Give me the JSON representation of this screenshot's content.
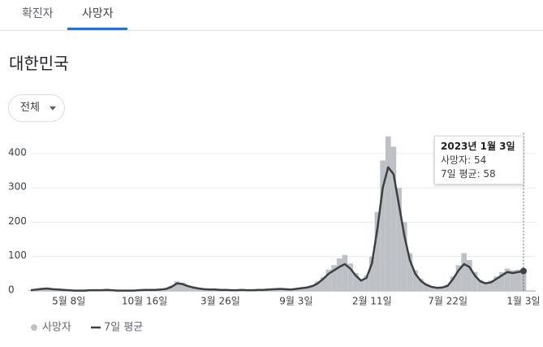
{
  "tabs": [
    "확진자",
    "사망자"
  ],
  "region": "대한민국",
  "filter": "전체",
  "chart_data": {
    "type": "combo",
    "categories": [
      null,
      null,
      null,
      null,
      null,
      null,
      null,
      "5월 8일",
      null,
      null,
      null,
      null,
      null,
      null,
      null,
      null,
      null,
      null,
      null,
      null,
      null,
      "10월 16일",
      null,
      null,
      null,
      null,
      null,
      null,
      null,
      null,
      null,
      null,
      null,
      null,
      null,
      "3월 26일",
      null,
      null,
      null,
      null,
      null,
      null,
      null,
      null,
      null,
      null,
      null,
      null,
      null,
      "9월 3일",
      null,
      null,
      null,
      null,
      null,
      null,
      null,
      null,
      null,
      null,
      null,
      null,
      null,
      "2월 11일",
      null,
      null,
      null,
      null,
      null,
      null,
      null,
      null,
      null,
      null,
      null,
      null,
      null,
      "7월 22일",
      null,
      null,
      null,
      null,
      null,
      null,
      null,
      null,
      null,
      null,
      null,
      null,
      null,
      "1월 3일"
    ],
    "series": [
      {
        "name": "사망자",
        "type": "bar",
        "color": "#bdc1c6",
        "values": [
          2,
          5,
          7,
          8,
          5,
          4,
          3,
          2,
          1,
          2,
          1,
          3,
          2,
          3,
          4,
          2,
          1,
          2,
          1,
          1,
          3,
          4,
          3,
          4,
          5,
          7,
          15,
          28,
          24,
          16,
          11,
          8,
          6,
          5,
          4,
          3,
          4,
          2,
          3,
          4,
          2,
          3,
          4,
          3,
          5,
          6,
          8,
          6,
          5,
          7,
          10,
          12,
          17,
          28,
          40,
          62,
          75,
          95,
          105,
          80,
          52,
          34,
          45,
          100,
          230,
          380,
          450,
          420,
          300,
          200,
          110,
          60,
          35,
          22,
          14,
          11,
          12,
          18,
          42,
          75,
          110,
          90,
          55,
          32,
          26,
          30,
          42,
          55,
          65,
          60,
          62,
          54
        ]
      },
      {
        "name": "7일 평균",
        "type": "line",
        "color": "#3c4043",
        "values": [
          2,
          4,
          6,
          7,
          5,
          4,
          3,
          2,
          1,
          1,
          1,
          2,
          2,
          2,
          3,
          2,
          1,
          1,
          1,
          1,
          2,
          3,
          3,
          3,
          4,
          6,
          12,
          22,
          20,
          14,
          10,
          7,
          5,
          4,
          4,
          3,
          3,
          2,
          2,
          3,
          2,
          2,
          3,
          3,
          4,
          5,
          6,
          5,
          4,
          6,
          8,
          10,
          14,
          22,
          35,
          50,
          60,
          70,
          78,
          65,
          45,
          30,
          38,
          80,
          180,
          300,
          360,
          340,
          250,
          160,
          90,
          50,
          30,
          18,
          12,
          9,
          10,
          15,
          35,
          60,
          78,
          70,
          45,
          28,
          22,
          25,
          35,
          45,
          55,
          52,
          55,
          58
        ]
      }
    ],
    "ylim": [
      0,
      460
    ],
    "yticks": [
      0,
      100,
      200,
      300,
      400
    ],
    "grid": true,
    "tooltip": {
      "date": "2023년 1월 3일",
      "lines": [
        "사망자: 54",
        "7일 평균: 58"
      ]
    }
  }
}
